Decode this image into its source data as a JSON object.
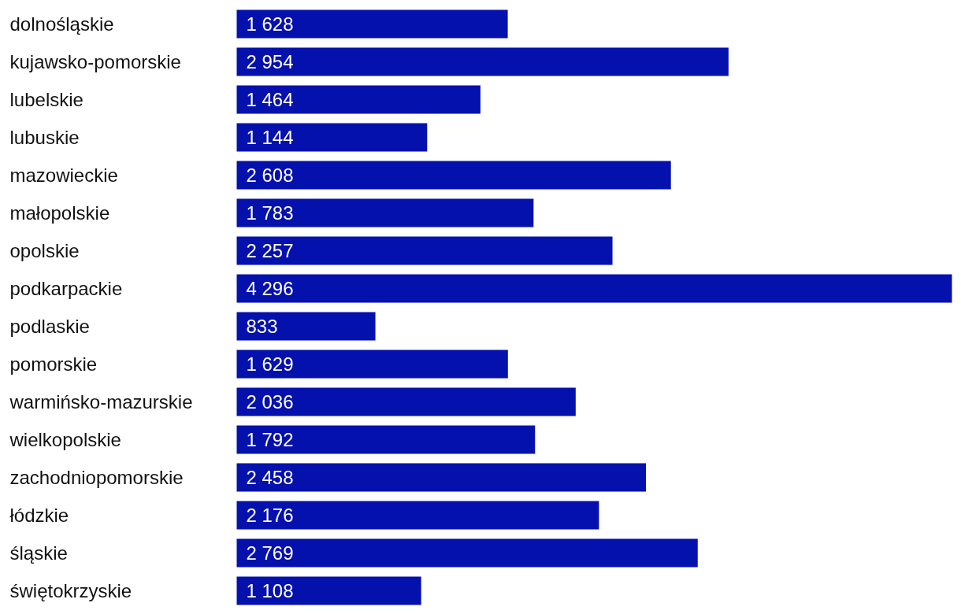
{
  "chart_data": {
    "type": "bar",
    "orientation": "horizontal",
    "color": "#0511ad",
    "categories": [
      "dolnośląskie",
      "kujawsko-pomorskie",
      "lubelskie",
      "lubuskie",
      "mazowieckie",
      "małopolskie",
      "opolskie",
      "podkarpackie",
      "podlaskie",
      "pomorskie",
      "warmińsko-mazurskie",
      "wielkopolskie",
      "zachodniopomorskie",
      "łódzkie",
      "śląskie",
      "świętokrzyskie"
    ],
    "values": [
      1628,
      2954,
      1464,
      1144,
      2608,
      1783,
      2257,
      4296,
      833,
      1629,
      2036,
      1792,
      2458,
      2176,
      2769,
      1108
    ],
    "value_labels": [
      "1 628",
      "2 954",
      "1 464",
      "1 144",
      "2 608",
      "1 783",
      "2 257",
      "4 296",
      "833",
      "1 629",
      "2 036",
      "1 792",
      "2 458",
      "2 176",
      "2 769",
      "1 108"
    ]
  }
}
